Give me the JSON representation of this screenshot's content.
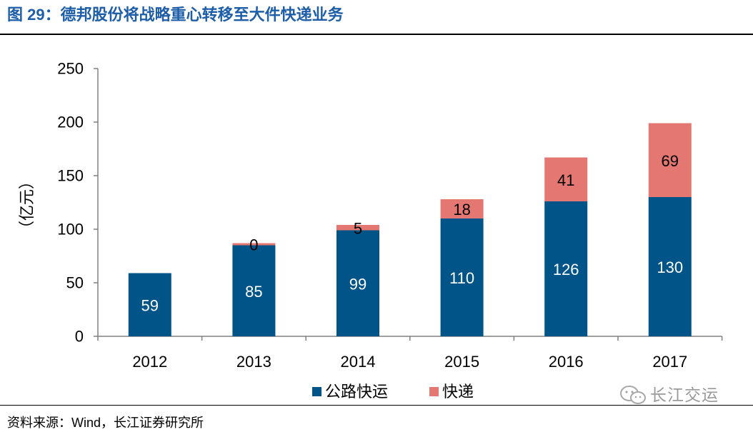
{
  "figure_title": "图 29：德邦股份将战略重心转移至大件快递业务",
  "source": "资料来源：Wind，长江证券研究所",
  "watermark": {
    "text": "长江交运",
    "icon": "wechat-icon"
  },
  "colors": {
    "title": "#1E5EA8",
    "road_freight": "#005488",
    "express": "#E47772",
    "watermark": "#9a9a9a"
  },
  "chart_data": {
    "type": "bar",
    "stacked": true,
    "xlabel": "",
    "ylabel": "（亿元）",
    "ylim": [
      0,
      250
    ],
    "yticks": [
      0,
      50,
      100,
      150,
      200,
      250
    ],
    "categories": [
      "2012",
      "2013",
      "2014",
      "2015",
      "2016",
      "2017"
    ],
    "series": [
      {
        "name": "公路快运",
        "color": "#005488",
        "label_color": "#ffffff",
        "values": [
          59,
          85,
          99,
          110,
          126,
          130
        ]
      },
      {
        "name": "快递",
        "color": "#E47772",
        "label_color": "#000000",
        "values": [
          null,
          0,
          5,
          18,
          41,
          69
        ]
      }
    ],
    "legend": "bottom",
    "grid": false
  }
}
